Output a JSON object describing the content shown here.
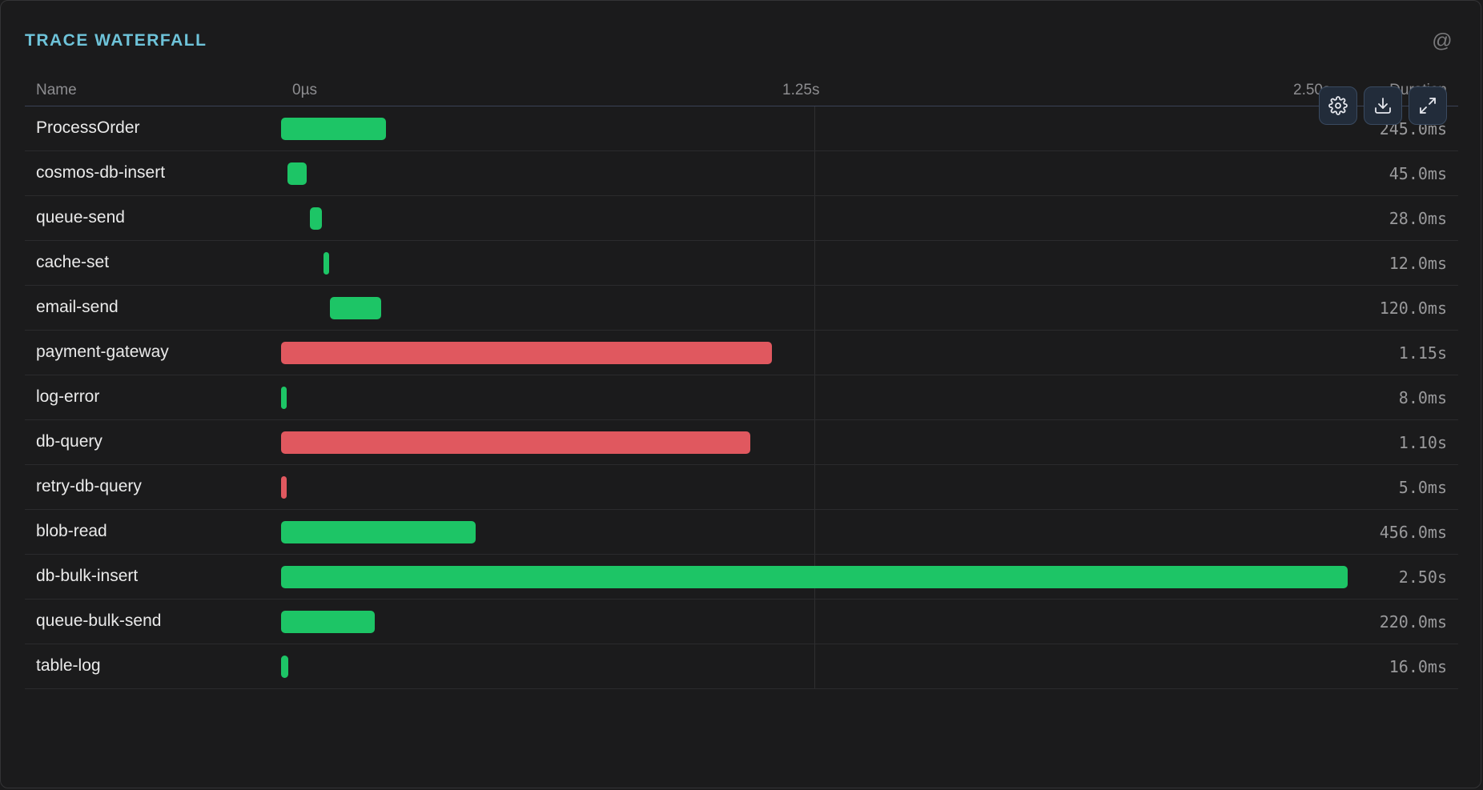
{
  "panel": {
    "title": "TRACE WATERFALL",
    "corner_icon": "at-icon"
  },
  "header": {
    "name_label": "Name",
    "duration_label": "Duration",
    "ticks": [
      "0µs",
      "1.25s",
      "2.50s"
    ]
  },
  "toolbar": [
    {
      "icon": "gear-icon",
      "label": "Settings"
    },
    {
      "icon": "download-icon",
      "label": "Download"
    },
    {
      "icon": "expand-icon",
      "label": "Expand"
    }
  ],
  "colors": {
    "ok": "#1dc566",
    "error": "#e0585f"
  },
  "chart_data": {
    "type": "bar",
    "x_unit": "ms",
    "x_range": [
      0,
      2500
    ],
    "spans": [
      {
        "name": "ProcessOrder",
        "start_ms": 0,
        "duration_ms": 245,
        "duration_label": "245.0ms",
        "status": "ok"
      },
      {
        "name": "cosmos-db-insert",
        "start_ms": 15,
        "duration_ms": 45,
        "duration_label": "45.0ms",
        "status": "ok"
      },
      {
        "name": "queue-send",
        "start_ms": 67,
        "duration_ms": 28,
        "duration_label": "28.0ms",
        "status": "ok"
      },
      {
        "name": "cache-set",
        "start_ms": 100,
        "duration_ms": 12,
        "duration_label": "12.0ms",
        "status": "ok"
      },
      {
        "name": "email-send",
        "start_ms": 115,
        "duration_ms": 120,
        "duration_label": "120.0ms",
        "status": "ok"
      },
      {
        "name": "payment-gateway",
        "start_ms": 0,
        "duration_ms": 1150,
        "duration_label": "1.15s",
        "status": "error"
      },
      {
        "name": "log-error",
        "start_ms": 0,
        "duration_ms": 8,
        "duration_label": "8.0ms",
        "status": "ok"
      },
      {
        "name": "db-query",
        "start_ms": 0,
        "duration_ms": 1100,
        "duration_label": "1.10s",
        "status": "error"
      },
      {
        "name": "retry-db-query",
        "start_ms": 0,
        "duration_ms": 5,
        "duration_label": "5.0ms",
        "status": "error"
      },
      {
        "name": "blob-read",
        "start_ms": 0,
        "duration_ms": 456,
        "duration_label": "456.0ms",
        "status": "ok"
      },
      {
        "name": "db-bulk-insert",
        "start_ms": 0,
        "duration_ms": 2500,
        "duration_label": "2.50s",
        "status": "ok"
      },
      {
        "name": "queue-bulk-send",
        "start_ms": 0,
        "duration_ms": 220,
        "duration_label": "220.0ms",
        "status": "ok"
      },
      {
        "name": "table-log",
        "start_ms": 0,
        "duration_ms": 16,
        "duration_label": "16.0ms",
        "status": "ok"
      }
    ]
  }
}
